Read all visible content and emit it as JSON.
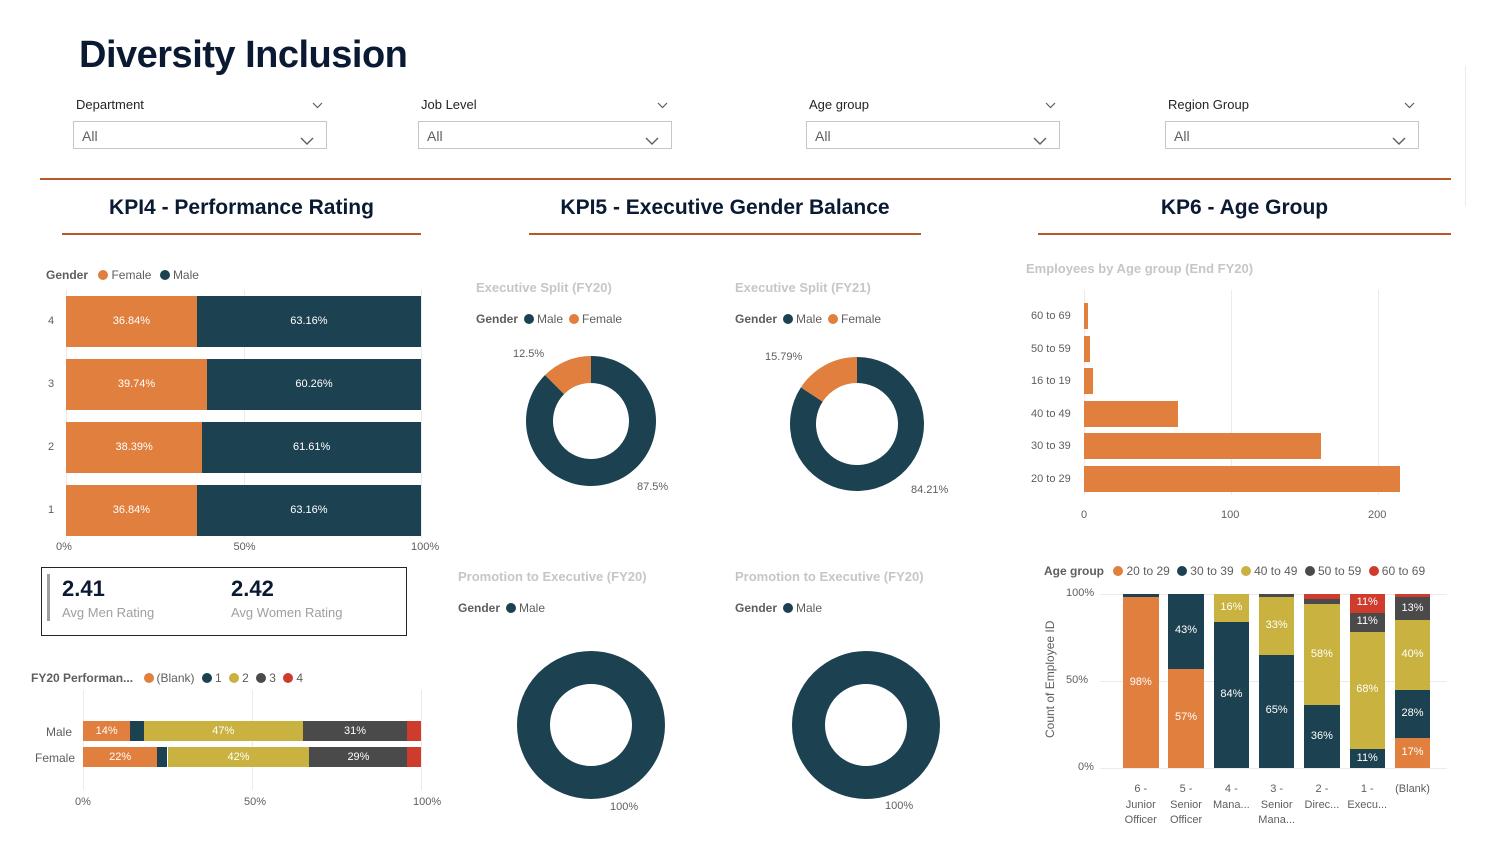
{
  "page": {
    "title": "Diversity Inclusion"
  },
  "filters": [
    {
      "label": "Department",
      "value": "All"
    },
    {
      "label": "Job Level",
      "value": "All"
    },
    {
      "label": "Age group",
      "value": "All"
    },
    {
      "label": "Region Group",
      "value": "All"
    }
  ],
  "sections": {
    "kpi4": "KPI4 - Performance Rating",
    "kpi5": "KPI5 - Executive Gender Balance",
    "kp6": "KP6 - Age Group"
  },
  "colors": {
    "female": "#e07f3e",
    "male": "#1c4150",
    "yellow": "#c9b23f",
    "grey": "#4a4a4a",
    "red": "#cf3c2d",
    "rule": "#b5582a"
  },
  "perf_rating": {
    "legend_title": "Gender",
    "legend": [
      "Female",
      "Male"
    ],
    "axis": [
      "0%",
      "50%",
      "100%"
    ]
  },
  "kpi_card": {
    "men_value": "2.41",
    "men_label": "Avg Men Rating",
    "women_value": "2.42",
    "women_label": "Avg Women Rating"
  },
  "fy20_perf": {
    "legend_title": "FY20 Performan...",
    "legend": [
      "(Blank)",
      "1",
      "2",
      "3",
      "4"
    ],
    "axis": [
      "0%",
      "50%",
      "100%"
    ]
  },
  "donuts": [
    {
      "title": "Executive Split (FY20)",
      "legend_title": "Gender",
      "legend": [
        "Male",
        "Female"
      ],
      "small_label": "12.5%",
      "large_label": "87.5%"
    },
    {
      "title": "Executive Split (FY21)",
      "legend_title": "Gender",
      "legend": [
        "Male",
        "Female"
      ],
      "small_label": "15.79%",
      "large_label": "84.21%"
    },
    {
      "title": "Promotion to Executive (FY20)",
      "legend_title": "Gender",
      "legend": [
        "Male"
      ],
      "large_label": "100%"
    },
    {
      "title": "Promotion to Executive (FY20)",
      "legend_title": "Gender",
      "legend": [
        "Male"
      ],
      "large_label": "100%"
    }
  ],
  "age_bar": {
    "title": "Employees by Age group (End FY20)",
    "ticks": [
      "0",
      "100",
      "200"
    ]
  },
  "age_stack": {
    "legend_title": "Age group",
    "legend": [
      "20 to 29",
      "30 to 39",
      "40 to 49",
      "50 to 59",
      "60 to 69"
    ],
    "ylabel": "Count of Employee ID",
    "yticks": [
      "100%",
      "50%",
      "0%"
    ],
    "categories": [
      [
        "6 -",
        "Junior",
        "Officer"
      ],
      [
        "5 -",
        "Senior",
        "Officer"
      ],
      [
        "4 -",
        "Mana..."
      ],
      [
        "3 -",
        "Senior",
        "Mana..."
      ],
      [
        "2 -",
        "Direc..."
      ],
      [
        "1 -",
        "Execu..."
      ],
      [
        "(Blank)"
      ]
    ]
  },
  "chart_data": [
    {
      "type": "bar",
      "title": "",
      "orientation": "horizontal-stacked-100",
      "categories": [
        "4",
        "3",
        "2",
        "1"
      ],
      "series": [
        {
          "name": "Female",
          "values": [
            36.84,
            39.74,
            38.39,
            36.84
          ],
          "labels": [
            "36.84%",
            "39.74%",
            "38.39%",
            "36.84%"
          ]
        },
        {
          "name": "Male",
          "values": [
            63.16,
            60.26,
            61.61,
            63.16
          ],
          "labels": [
            "63.16%",
            "60.26%",
            "61.61%",
            "63.16%"
          ]
        }
      ],
      "xlim": [
        0,
        100
      ]
    },
    {
      "type": "bar",
      "title": "",
      "orientation": "horizontal-stacked-100",
      "categories": [
        "Male",
        "Female"
      ],
      "series": [
        {
          "name": "(Blank)",
          "values": [
            14,
            22
          ],
          "labels": [
            "14%",
            "22%"
          ]
        },
        {
          "name": "1",
          "values": [
            4,
            3
          ],
          "labels": [
            "",
            ""
          ]
        },
        {
          "name": "2",
          "values": [
            47,
            42
          ],
          "labels": [
            "47%",
            "42%"
          ]
        },
        {
          "name": "3",
          "values": [
            31,
            29
          ],
          "labels": [
            "31%",
            "29%"
          ]
        },
        {
          "name": "4",
          "values": [
            4,
            4
          ],
          "labels": [
            "",
            ""
          ]
        }
      ],
      "xlim": [
        0,
        100
      ]
    },
    {
      "type": "pie",
      "title": "Executive Split (FY20)",
      "labels": [
        "Male",
        "Female"
      ],
      "values": [
        87.5,
        12.5
      ]
    },
    {
      "type": "pie",
      "title": "Executive Split (FY21)",
      "labels": [
        "Male",
        "Female"
      ],
      "values": [
        84.21,
        15.79
      ]
    },
    {
      "type": "pie",
      "title": "Promotion to Executive (FY20)",
      "labels": [
        "Male"
      ],
      "values": [
        100
      ]
    },
    {
      "type": "pie",
      "title": "Promotion to Executive (FY20)",
      "labels": [
        "Male"
      ],
      "values": [
        100
      ]
    },
    {
      "type": "bar",
      "title": "Employees by Age group (End FY20)",
      "orientation": "horizontal",
      "categories": [
        "60 to 69",
        "50 to 59",
        "16 to 19",
        "40 to 49",
        "30 to 39",
        "20 to 29"
      ],
      "values": [
        3,
        4,
        6,
        64,
        161,
        215
      ],
      "xlim": [
        0,
        240
      ]
    },
    {
      "type": "bar",
      "title": "",
      "orientation": "vertical-stacked-100",
      "categories": [
        "6 - Junior Officer",
        "5 - Senior Officer",
        "4 - Mana...",
        "3 - Senior Mana...",
        "2 - Direc...",
        "1 - Execu...",
        "(Blank)"
      ],
      "ylabel": "Count of Employee ID",
      "series": [
        {
          "name": "20 to 29",
          "values": [
            98,
            57,
            0,
            0,
            0,
            0,
            17
          ],
          "labels": [
            "98%",
            "57%",
            "",
            "",
            "",
            "",
            "17%"
          ]
        },
        {
          "name": "30 to 39",
          "values": [
            2,
            43,
            84,
            65,
            36,
            11,
            28
          ],
          "labels": [
            "",
            "43%",
            "84%",
            "65%",
            "36%",
            "11%",
            "28%"
          ]
        },
        {
          "name": "40 to 49",
          "values": [
            0,
            0,
            16,
            33,
            58,
            68,
            40
          ],
          "labels": [
            "",
            "",
            "16%",
            "33%",
            "58%",
            "68%",
            "40%"
          ]
        },
        {
          "name": "50 to 59",
          "values": [
            0,
            0,
            0,
            2,
            3,
            11,
            13
          ],
          "labels": [
            "",
            "",
            "",
            "",
            "",
            "11%",
            "13%"
          ]
        },
        {
          "name": "60 to 69",
          "values": [
            0,
            0,
            0,
            0,
            3,
            11,
            2
          ],
          "labels": [
            "",
            "",
            "",
            "",
            "",
            "11%",
            ""
          ]
        }
      ],
      "ylim": [
        0,
        100
      ]
    }
  ]
}
